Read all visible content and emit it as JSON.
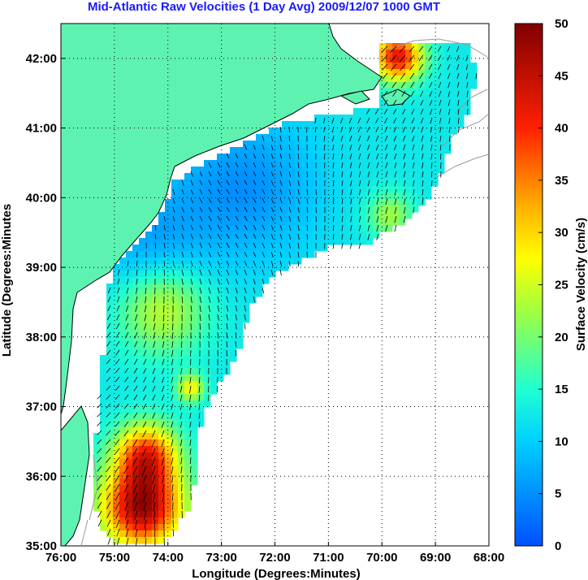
{
  "title": "Mid-Atlantic Raw Velocities (1 Day Avg) 2009/12/07 1000 GMT",
  "axes": {
    "xlabel": "Longitude (Degrees:Minutes)",
    "ylabel": "Latitude (Degrees:Minutes",
    "x_ticks": [
      "76:00",
      "75:00",
      "74:00",
      "73:00",
      "72:00",
      "71:00",
      "70:00",
      "69:00",
      "68:00"
    ],
    "y_ticks": [
      "42:00",
      "41:00",
      "40:00",
      "39:00",
      "38:00",
      "37:00",
      "36:00",
      "35:00"
    ],
    "lon_range": [
      -76,
      -68
    ],
    "lat_range": [
      35,
      42.5
    ],
    "grid": true
  },
  "colorbar": {
    "label": "Surface Velocity (cm/s)",
    "ticks": [
      "50",
      "45",
      "40",
      "35",
      "30",
      "25",
      "20",
      "15",
      "10",
      "5",
      "0"
    ],
    "range": [
      0,
      50
    ],
    "colormap": "jet"
  },
  "colors": {
    "land": "#5ef2b0",
    "title": "#1a1aff",
    "high_velocity": "#7f0000",
    "low_velocity": "#0066ff"
  }
}
